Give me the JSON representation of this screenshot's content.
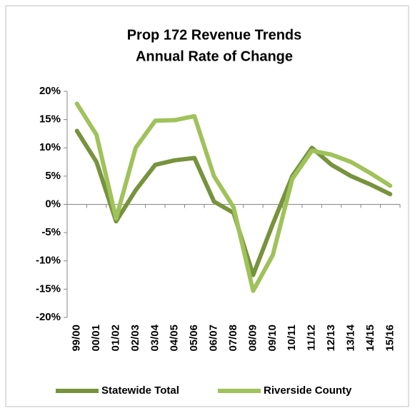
{
  "chart_data": {
    "type": "line",
    "title": [
      "Prop 172 Revenue Trends",
      "Annual Rate of Change"
    ],
    "categories": [
      "99/00",
      "00/01",
      "01/02",
      "02/03",
      "03/04",
      "04/05",
      "05/06",
      "06/07",
      "07/08",
      "08/09",
      "09/10",
      "10/11",
      "11/12",
      "12/13",
      "13/14",
      "14/15",
      "15/16"
    ],
    "series": [
      {
        "name": "Statewide Total",
        "color": "#77933c",
        "values": [
          13,
          7.5,
          -3,
          2.5,
          7,
          7.8,
          8.2,
          0.5,
          -1.5,
          -12.5,
          -3.5,
          5,
          10,
          7,
          5,
          3.5,
          1.8
        ]
      },
      {
        "name": "Riverside County",
        "color": "#9fc25a",
        "values": [
          17.8,
          12.3,
          -2.5,
          10,
          14.8,
          14.9,
          15.6,
          5,
          -0.5,
          -15.3,
          -9,
          4.5,
          9.5,
          8.8,
          7.5,
          5.5,
          3.3
        ]
      }
    ],
    "ylim": [
      -20,
      20
    ],
    "yticks": [
      {
        "value": -20,
        "label": "-20%"
      },
      {
        "value": -15,
        "label": "-15%"
      },
      {
        "value": -10,
        "label": "-10%"
      },
      {
        "value": -5,
        "label": "-5%"
      },
      {
        "value": 0,
        "label": "0%"
      },
      {
        "value": 5,
        "label": "5%"
      },
      {
        "value": 10,
        "label": "10%"
      },
      {
        "value": 15,
        "label": "15%"
      },
      {
        "value": 20,
        "label": "20%"
      }
    ],
    "legend": "bottom"
  }
}
